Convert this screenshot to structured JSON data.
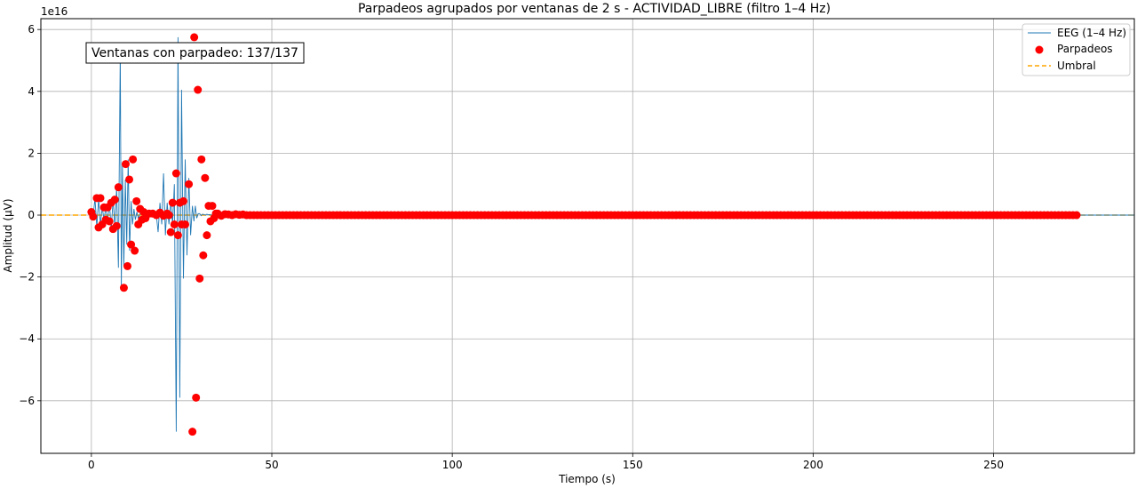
{
  "chart_data": {
    "type": "line",
    "title": "Parpadeos agrupados por ventanas de 2 s - ACTIVIDAD_LIBRE (filtro 1–4 Hz)",
    "xlabel": "Tiempo (s)",
    "ylabel": "Amplitud (μV)",
    "y_offset_label": "1e16",
    "xlim": [
      -14,
      289
    ],
    "ylim": [
      -7.7,
      6.35
    ],
    "x_ticks": [
      0,
      50,
      100,
      150,
      200,
      250
    ],
    "y_ticks": [
      -6,
      -4,
      -2,
      0,
      2,
      4,
      6
    ],
    "x_tick_labels": [
      "0",
      "50",
      "100",
      "150",
      "200",
      "250"
    ],
    "y_tick_labels": [
      "−6",
      "−4",
      "−2",
      "0",
      "2",
      "4",
      "6"
    ],
    "grid": true,
    "legend_position": "top-right",
    "annotation": "Ventanas con parpadeo: 137/137",
    "colors": {
      "eeg": "#1f77b4",
      "blinks": "#ff0000",
      "threshold": "#ffa500"
    },
    "series": [
      {
        "name": "EEG (1–4 Hz)",
        "kind": "line",
        "x": [
          0,
          0.5,
          1,
          1.5,
          2,
          2.5,
          3,
          3.5,
          4,
          4.5,
          5,
          5.5,
          6,
          6.5,
          7,
          7.5,
          8,
          8.3,
          8.6,
          9,
          9.4,
          9.8,
          10.2,
          10.6,
          11,
          11.4,
          11.8,
          12.2,
          12.6,
          13,
          13.5,
          14,
          14.5,
          15,
          15.5,
          16,
          16.5,
          17,
          17.5,
          18,
          18.5,
          19,
          19.5,
          20,
          20.5,
          21,
          21.5,
          22,
          22.5,
          23,
          23.5,
          24,
          24.5,
          25,
          25.5,
          26,
          26.5,
          27,
          27.5,
          28,
          28.4,
          28.8,
          29.2,
          29.6,
          30,
          30.4,
          30.8,
          31.2,
          31.6,
          32,
          32.4,
          32.8,
          33.2,
          33.6,
          34,
          34.5,
          35,
          35.5,
          36,
          37,
          38,
          39,
          40,
          41,
          42,
          43,
          44,
          45,
          50,
          60,
          80,
          100,
          150,
          200,
          250,
          273,
          289
        ],
        "y": [
          0.1,
          -0.05,
          0.55,
          -0.4,
          0.55,
          -0.3,
          0.25,
          -0.15,
          0.25,
          -0.2,
          0.4,
          -0.45,
          0.5,
          -0.35,
          0.9,
          -1.7,
          5.3,
          -2.35,
          1.65,
          -1.65,
          1.15,
          -0.95,
          1.8,
          -1.15,
          0.45,
          -0.3,
          0.2,
          -0.15,
          0.1,
          -0.1,
          0.05,
          0.05,
          0.0,
          0.08,
          -0.02,
          0.05,
          0.0,
          0.05,
          -0.05,
          0.0,
          -0.55,
          0.4,
          -0.3,
          1.35,
          -0.65,
          0.4,
          -0.3,
          0.45,
          -0.3,
          1.0,
          -7.0,
          5.75,
          -5.9,
          4.05,
          -2.05,
          1.8,
          -1.3,
          1.2,
          -0.65,
          0.3,
          -0.2,
          0.3,
          -0.1,
          0.05,
          0.05,
          -0.02,
          0.03,
          0.02,
          0.0,
          0.03,
          0.01,
          0.02,
          0.0,
          0.01,
          0.0,
          0.01,
          0.0,
          0.0,
          0.0,
          0.0,
          0.0,
          0.0,
          0.0,
          0.0,
          0.0,
          0.0,
          0.0,
          0.0,
          0.0,
          0.0,
          0.0,
          0.0,
          0.0,
          0.0,
          0.0,
          0.0,
          0.0
        ]
      },
      {
        "name": "Parpadeos",
        "kind": "scatter",
        "points": [
          [
            0,
            0.1
          ],
          [
            0.5,
            -0.05
          ],
          [
            1.5,
            0.55
          ],
          [
            2,
            -0.4
          ],
          [
            2.5,
            0.55
          ],
          [
            3,
            -0.3
          ],
          [
            3.5,
            0.25
          ],
          [
            4,
            -0.15
          ],
          [
            4.5,
            0.25
          ],
          [
            5,
            -0.2
          ],
          [
            5.5,
            0.4
          ],
          [
            6,
            -0.45
          ],
          [
            6.5,
            0.5
          ],
          [
            7,
            -0.35
          ],
          [
            7.5,
            0.9
          ],
          [
            8.5,
            5.3
          ],
          [
            9,
            -2.35
          ],
          [
            9.5,
            1.65
          ],
          [
            10,
            -1.65
          ],
          [
            10.5,
            1.15
          ],
          [
            11,
            -0.95
          ],
          [
            11.5,
            1.8
          ],
          [
            12,
            -1.15
          ],
          [
            12.5,
            0.45
          ],
          [
            13,
            -0.3
          ],
          [
            13.5,
            0.2
          ],
          [
            14,
            -0.15
          ],
          [
            14.5,
            0.1
          ],
          [
            15,
            -0.1
          ],
          [
            16,
            0.05
          ],
          [
            17,
            0.05
          ],
          [
            18,
            0.0
          ],
          [
            19,
            0.08
          ],
          [
            20,
            -0.02
          ],
          [
            21,
            0.05
          ],
          [
            21.5,
            0.0
          ],
          [
            22,
            -0.55
          ],
          [
            22.5,
            0.4
          ],
          [
            23,
            -0.3
          ],
          [
            23.5,
            1.35
          ],
          [
            24,
            -0.65
          ],
          [
            24.5,
            0.4
          ],
          [
            25,
            -0.3
          ],
          [
            25.5,
            0.45
          ],
          [
            26,
            -0.3
          ],
          [
            27,
            1.0
          ],
          [
            28,
            -7.0
          ],
          [
            28.5,
            5.75
          ],
          [
            29,
            -5.9
          ],
          [
            29.5,
            4.05
          ],
          [
            30,
            -2.05
          ],
          [
            30.5,
            1.8
          ],
          [
            31,
            -1.3
          ],
          [
            31.5,
            1.2
          ],
          [
            32,
            -0.65
          ],
          [
            32.5,
            0.3
          ],
          [
            33,
            -0.2
          ],
          [
            33.5,
            0.3
          ],
          [
            34,
            -0.1
          ],
          [
            34.5,
            0.05
          ],
          [
            35,
            0.05
          ],
          [
            36,
            -0.02
          ],
          [
            37,
            0.03
          ],
          [
            38,
            0.02
          ],
          [
            39,
            0.0
          ],
          [
            40,
            0.03
          ],
          [
            41,
            0.01
          ],
          [
            42,
            0.02
          ],
          [
            43,
            0.0
          ]
        ],
        "tail_x_start": 44,
        "tail_x_end": 273,
        "tail_step": 1,
        "tail_y": 0.0
      },
      {
        "name": "Umbral",
        "kind": "hline",
        "y": 0.0
      }
    ]
  }
}
